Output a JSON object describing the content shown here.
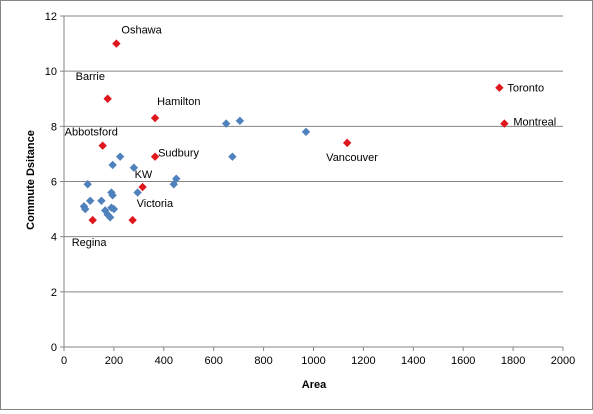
{
  "chart_data": {
    "type": "scatter",
    "title": "",
    "xlabel": "Area",
    "ylabel": "Commute Dsitance",
    "xlim": [
      0,
      2000
    ],
    "ylim": [
      0,
      12
    ],
    "xticks": [
      "0",
      "200",
      "400",
      "600",
      "800",
      "1000",
      "1200",
      "1400",
      "1600",
      "1800",
      "2000"
    ],
    "yticks": [
      "0",
      "2",
      "4",
      "6",
      "8",
      "10",
      "12"
    ],
    "grid": "horizontal",
    "legend": "none",
    "colors": {
      "base": "#4F81BD",
      "highlight": "#E0161D",
      "grid": "#868686"
    },
    "series": [
      {
        "color": "#4F81BD",
        "points": [
          {
            "x": 95,
            "y": 5.9
          },
          {
            "x": 80,
            "y": 5.1
          },
          {
            "x": 85,
            "y": 5.0
          },
          {
            "x": 105,
            "y": 5.3
          },
          {
            "x": 150,
            "y": 5.3
          },
          {
            "x": 165,
            "y": 4.95
          },
          {
            "x": 175,
            "y": 4.8
          },
          {
            "x": 185,
            "y": 4.7
          },
          {
            "x": 190,
            "y": 5.6
          },
          {
            "x": 195,
            "y": 5.5
          },
          {
            "x": 190,
            "y": 5.05
          },
          {
            "x": 200,
            "y": 5.0
          },
          {
            "x": 195,
            "y": 6.6
          },
          {
            "x": 225,
            "y": 6.9
          },
          {
            "x": 280,
            "y": 6.5
          },
          {
            "x": 295,
            "y": 5.6
          },
          {
            "x": 440,
            "y": 5.9
          },
          {
            "x": 450,
            "y": 6.1
          },
          {
            "x": 650,
            "y": 8.1
          },
          {
            "x": 705,
            "y": 8.2
          },
          {
            "x": 675,
            "y": 6.9
          },
          {
            "x": 970,
            "y": 7.8
          }
        ]
      },
      {
        "color": "#E0161D",
        "points": [
          {
            "x": 210,
            "y": 11.0,
            "label": "Oshawa"
          },
          {
            "x": 175,
            "y": 9.0,
            "label": "Barrie"
          },
          {
            "x": 365,
            "y": 8.3,
            "label": "Hamilton"
          },
          {
            "x": 155,
            "y": 7.3,
            "label": "Abbotsford"
          },
          {
            "x": 365,
            "y": 6.9,
            "label": "Sudbury"
          },
          {
            "x": 315,
            "y": 5.8,
            "label": "KW"
          },
          {
            "x": 275,
            "y": 4.6,
            "label": "Victoria"
          },
          {
            "x": 115,
            "y": 4.6,
            "label": "Regina"
          },
          {
            "x": 1135,
            "y": 7.4,
            "label": "Vancouver"
          },
          {
            "x": 1745,
            "y": 9.4,
            "label": "Toronto"
          },
          {
            "x": 1765,
            "y": 8.1,
            "label": "Montreal"
          }
        ]
      }
    ]
  }
}
